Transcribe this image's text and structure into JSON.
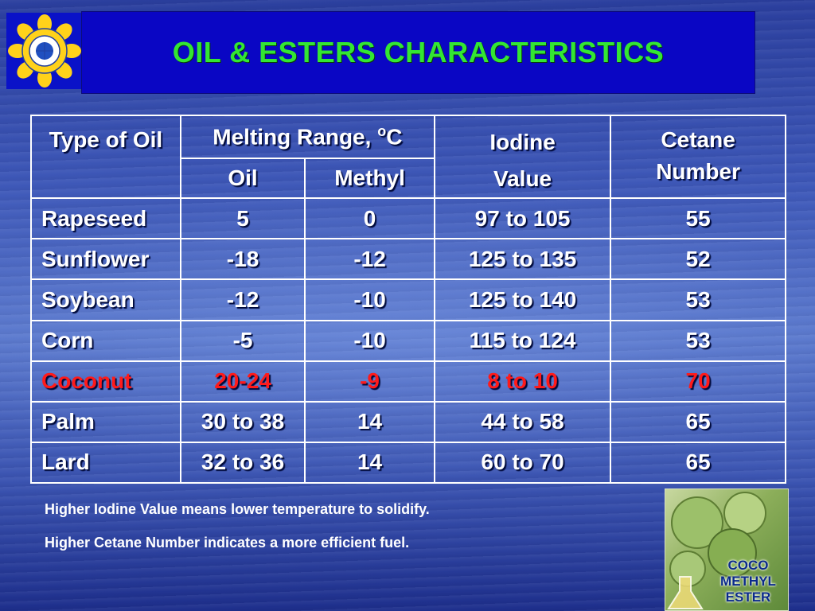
{
  "title": "OIL & ESTERS CHARACTERISTICS",
  "table": {
    "head": {
      "type": "Type of Oil",
      "melting_main": "Melting Range, ",
      "melting_sup": "o",
      "melting_unit": "C",
      "oil": "Oil",
      "methyl": "Methyl",
      "iodine_line1": "Iodine",
      "iodine_line2": "Value",
      "cetane": "Cetane Number"
    },
    "rows": [
      {
        "type": "Rapeseed",
        "oil": "5",
        "methyl": "0",
        "iodine": "97 to 105",
        "cetane": "55"
      },
      {
        "type": "Sunflower",
        "oil": "-18",
        "methyl": "-12",
        "iodine": "125 to 135",
        "cetane": "52"
      },
      {
        "type": "Soybean",
        "oil": "-12",
        "methyl": "-10",
        "iodine": "125 to 140",
        "cetane": "53"
      },
      {
        "type": "Corn",
        "oil": "-5",
        "methyl": "-10",
        "iodine": "115 to 124",
        "cetane": "53"
      },
      {
        "type": "Coconut",
        "oil": "20-24",
        "methyl": "-9",
        "iodine": "8 to 10",
        "cetane": "70"
      },
      {
        "type": "Palm",
        "oil": "30 to 38",
        "methyl": "14",
        "iodine": "44 to 58",
        "cetane": "65"
      },
      {
        "type": "Lard",
        "oil": "32 to 36",
        "methyl": "14",
        "iodine": "60 to 70",
        "cetane": "65"
      }
    ],
    "highlight_color": "#ff1a1a"
  },
  "notes": [
    "Higher Iodine Value means lower temperature to solidify.",
    "Higher Cetane Number indicates a more efficient fuel."
  ],
  "photo": {
    "caption_lines": [
      "COCO",
      "METHYL",
      "ESTER"
    ]
  },
  "colors": {
    "title_text": "#33e633",
    "title_bg": "#0a06c4",
    "text": "#ffffff"
  },
  "icons": {
    "logo": "sun-seal-icon"
  }
}
